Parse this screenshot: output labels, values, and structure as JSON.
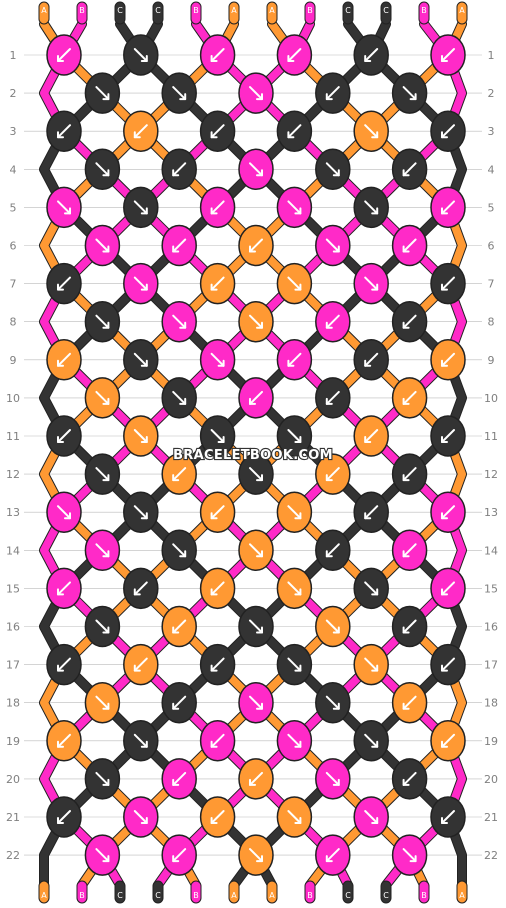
{
  "watermark": "BRACELETBOOK.COM",
  "colors": {
    "A": "#ff9933",
    "B": "#ff2ac8",
    "C": "#333333"
  },
  "arrow_color": "#ffffff",
  "grid_line": "#bbbbbb",
  "strands_top": [
    "A",
    "B",
    "C",
    "C",
    "B",
    "A",
    "A",
    "B",
    "C",
    "C",
    "B",
    "A"
  ],
  "strands_bottom": [
    "A",
    "B",
    "C",
    "C",
    "B",
    "A",
    "A",
    "B",
    "C",
    "C",
    "B",
    "A"
  ],
  "rows": [
    {
      "label": "1",
      "knots": [
        [
          "B",
          "sw"
        ],
        [
          "C",
          "se"
        ],
        [
          "B",
          "sw"
        ],
        [
          "B",
          "sw"
        ],
        [
          "C",
          "sw"
        ],
        [
          "B",
          "sw"
        ]
      ]
    },
    {
      "label": "2",
      "knots": [
        [
          "C",
          "se"
        ],
        [
          "C",
          "se"
        ],
        [
          "B",
          "se"
        ],
        [
          "C",
          "sw"
        ],
        [
          "C",
          "se"
        ]
      ]
    },
    {
      "label": "3",
      "knots": [
        [
          "C",
          "sw"
        ],
        [
          "A",
          "sw"
        ],
        [
          "C",
          "sw"
        ],
        [
          "C",
          "sw"
        ],
        [
          "A",
          "se"
        ],
        [
          "C",
          "sw"
        ]
      ]
    },
    {
      "label": "4",
      "knots": [
        [
          "C",
          "se"
        ],
        [
          "C",
          "sw"
        ],
        [
          "B",
          "se"
        ],
        [
          "C",
          "se"
        ],
        [
          "C",
          "sw"
        ]
      ]
    },
    {
      "label": "5",
      "knots": [
        [
          "B",
          "se"
        ],
        [
          "C",
          "se"
        ],
        [
          "B",
          "sw"
        ],
        [
          "B",
          "se"
        ],
        [
          "C",
          "se"
        ],
        [
          "B",
          "sw"
        ]
      ]
    },
    {
      "label": "6",
      "knots": [
        [
          "B",
          "se"
        ],
        [
          "B",
          "sw"
        ],
        [
          "A",
          "sw"
        ],
        [
          "B",
          "se"
        ],
        [
          "B",
          "sw"
        ]
      ]
    },
    {
      "label": "7",
      "knots": [
        [
          "C",
          "sw"
        ],
        [
          "B",
          "se"
        ],
        [
          "A",
          "sw"
        ],
        [
          "A",
          "se"
        ],
        [
          "B",
          "se"
        ],
        [
          "C",
          "sw"
        ]
      ]
    },
    {
      "label": "8",
      "knots": [
        [
          "C",
          "se"
        ],
        [
          "B",
          "se"
        ],
        [
          "A",
          "se"
        ],
        [
          "B",
          "sw"
        ],
        [
          "C",
          "sw"
        ]
      ]
    },
    {
      "label": "9",
      "knots": [
        [
          "A",
          "sw"
        ],
        [
          "C",
          "se"
        ],
        [
          "B",
          "se"
        ],
        [
          "B",
          "sw"
        ],
        [
          "C",
          "sw"
        ],
        [
          "A",
          "sw"
        ]
      ]
    },
    {
      "label": "10",
      "knots": [
        [
          "A",
          "se"
        ],
        [
          "C",
          "se"
        ],
        [
          "B",
          "sw"
        ],
        [
          "C",
          "sw"
        ],
        [
          "A",
          "sw"
        ]
      ]
    },
    {
      "label": "11",
      "knots": [
        [
          "C",
          "sw"
        ],
        [
          "A",
          "se"
        ],
        [
          "C",
          "se"
        ],
        [
          "C",
          "se"
        ],
        [
          "A",
          "sw"
        ],
        [
          "C",
          "sw"
        ]
      ]
    },
    {
      "label": "12",
      "knots": [
        [
          "C",
          "se"
        ],
        [
          "A",
          "sw"
        ],
        [
          "C",
          "se"
        ],
        [
          "A",
          "sw"
        ],
        [
          "C",
          "sw"
        ]
      ]
    },
    {
      "label": "13",
      "knots": [
        [
          "B",
          "se"
        ],
        [
          "C",
          "se"
        ],
        [
          "A",
          "sw"
        ],
        [
          "A",
          "se"
        ],
        [
          "C",
          "sw"
        ],
        [
          "B",
          "sw"
        ]
      ]
    },
    {
      "label": "14",
      "knots": [
        [
          "B",
          "se"
        ],
        [
          "C",
          "se"
        ],
        [
          "A",
          "se"
        ],
        [
          "C",
          "sw"
        ],
        [
          "B",
          "sw"
        ]
      ]
    },
    {
      "label": "15",
      "knots": [
        [
          "B",
          "sw"
        ],
        [
          "C",
          "sw"
        ],
        [
          "A",
          "sw"
        ],
        [
          "A",
          "se"
        ],
        [
          "C",
          "se"
        ],
        [
          "B",
          "sw"
        ]
      ]
    },
    {
      "label": "16",
      "knots": [
        [
          "C",
          "se"
        ],
        [
          "A",
          "sw"
        ],
        [
          "C",
          "se"
        ],
        [
          "A",
          "se"
        ],
        [
          "C",
          "sw"
        ]
      ]
    },
    {
      "label": "17",
      "knots": [
        [
          "C",
          "sw"
        ],
        [
          "A",
          "sw"
        ],
        [
          "C",
          "sw"
        ],
        [
          "C",
          "se"
        ],
        [
          "A",
          "se"
        ],
        [
          "C",
          "sw"
        ]
      ]
    },
    {
      "label": "18",
      "knots": [
        [
          "A",
          "se"
        ],
        [
          "C",
          "sw"
        ],
        [
          "B",
          "se"
        ],
        [
          "C",
          "se"
        ],
        [
          "A",
          "sw"
        ]
      ]
    },
    {
      "label": "19",
      "knots": [
        [
          "A",
          "sw"
        ],
        [
          "C",
          "se"
        ],
        [
          "B",
          "sw"
        ],
        [
          "B",
          "se"
        ],
        [
          "C",
          "se"
        ],
        [
          "A",
          "sw"
        ]
      ]
    },
    {
      "label": "20",
      "knots": [
        [
          "C",
          "se"
        ],
        [
          "B",
          "sw"
        ],
        [
          "A",
          "sw"
        ],
        [
          "B",
          "se"
        ],
        [
          "C",
          "sw"
        ]
      ]
    },
    {
      "label": "21",
      "knots": [
        [
          "C",
          "sw"
        ],
        [
          "B",
          "se"
        ],
        [
          "A",
          "sw"
        ],
        [
          "A",
          "se"
        ],
        [
          "B",
          "se"
        ],
        [
          "C",
          "sw"
        ]
      ]
    },
    {
      "label": "22",
      "knots": [
        [
          "B",
          "se"
        ],
        [
          "B",
          "sw"
        ],
        [
          "A",
          "se"
        ],
        [
          "B",
          "sw"
        ],
        [
          "B",
          "se"
        ]
      ]
    }
  ]
}
